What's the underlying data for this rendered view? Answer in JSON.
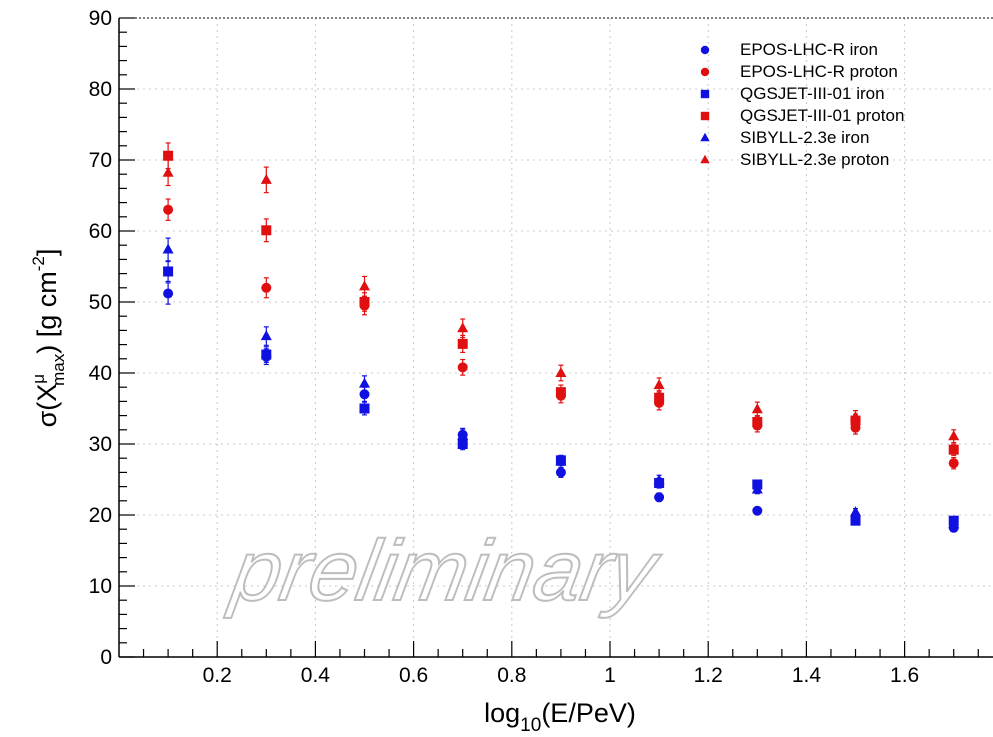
{
  "chart_data": {
    "type": "scatter",
    "title": "",
    "xlabel": "log10(E/PeV)",
    "xlabel_main": "log",
    "xlabel_sub": "10",
    "xlabel_rest": "(E/PeV)",
    "ylabel_parts": [
      "σ(X",
      "μ",
      "max",
      ") [g cm",
      "-2",
      "]"
    ],
    "xlim": [
      0,
      1.78
    ],
    "ylim": [
      0,
      90
    ],
    "xticks": [
      0.2,
      0.4,
      0.6,
      0.8,
      1,
      1.2,
      1.4,
      1.6
    ],
    "xtick_labels": [
      "0.2",
      "0.4",
      "0.6",
      "0.8",
      "1",
      "1.2",
      "1.4",
      "1.6"
    ],
    "yticks": [
      0,
      10,
      20,
      30,
      40,
      50,
      60,
      70,
      80,
      90
    ],
    "ytick_labels": [
      "0",
      "10",
      "20",
      "30",
      "40",
      "50",
      "60",
      "70",
      "80",
      "90"
    ],
    "grid": true,
    "legend_position": "top-right",
    "watermark": "preliminary",
    "x": [
      0.1,
      0.3,
      0.5,
      0.7,
      0.9,
      1.1,
      1.3,
      1.5,
      1.7
    ],
    "series": [
      {
        "name": "EPOS-LHC-R iron",
        "marker": "circle",
        "color": "#1010e0",
        "x_offset": 0,
        "values": [
          51.2,
          42.3,
          37.0,
          31.3,
          26.0,
          22.5,
          20.6,
          19.6,
          18.2
        ],
        "errors": [
          1.5,
          1.1,
          1.0,
          0.9,
          0.7,
          0.6,
          0.5,
          0.5,
          0.5
        ]
      },
      {
        "name": "EPOS-LHC-R proton",
        "marker": "circle",
        "color": "#e01010",
        "x_offset": 0,
        "values": [
          63.0,
          52.0,
          49.5,
          40.8,
          36.8,
          35.8,
          32.6,
          32.3,
          27.3
        ],
        "errors": [
          1.5,
          1.4,
          1.3,
          1.1,
          1.0,
          1.0,
          0.9,
          0.9,
          0.8
        ]
      },
      {
        "name": "QGSJET-III-01 iron",
        "marker": "square",
        "color": "#1010e0",
        "x_offset": 0,
        "values": [
          54.3,
          42.6,
          35.0,
          30.0,
          27.7,
          24.5,
          24.3,
          19.2,
          19.2
        ],
        "errors": [
          1.4,
          1.1,
          0.9,
          0.8,
          0.7,
          0.7,
          0.6,
          0.5,
          0.5
        ]
      },
      {
        "name": "QGSJET-III-01 proton",
        "marker": "square",
        "color": "#e01010",
        "x_offset": 0,
        "values": [
          70.6,
          60.1,
          50.0,
          44.1,
          37.3,
          36.5,
          33.1,
          33.3,
          29.2
        ],
        "errors": [
          1.8,
          1.6,
          1.3,
          1.2,
          1.0,
          1.0,
          0.9,
          0.9,
          0.8
        ]
      },
      {
        "name": "SIBYLL-2.3e iron",
        "marker": "triangle",
        "color": "#1010e0",
        "x_offset": 0,
        "values": [
          57.4,
          45.2,
          38.5,
          31.2,
          27.5,
          24.9,
          23.6,
          20.4,
          18.7
        ],
        "errors": [
          1.6,
          1.3,
          1.1,
          0.9,
          0.8,
          0.7,
          0.6,
          0.5,
          0.5
        ]
      },
      {
        "name": "SIBYLL-2.3e proton",
        "marker": "triangle",
        "color": "#e01010",
        "x_offset": 0,
        "values": [
          68.2,
          67.2,
          52.2,
          46.3,
          40.0,
          38.3,
          34.9,
          33.8,
          31.1
        ],
        "errors": [
          1.8,
          1.8,
          1.4,
          1.3,
          1.1,
          1.0,
          1.0,
          0.9,
          0.9
        ]
      }
    ]
  }
}
